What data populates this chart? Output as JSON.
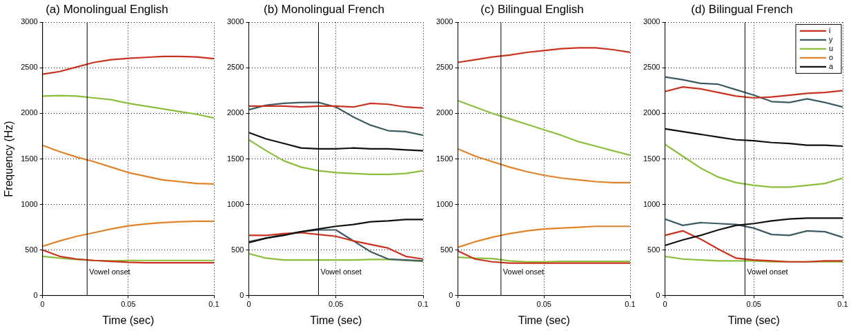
{
  "chart_data": [
    {
      "type": "line",
      "title": "(a) Monolingual English",
      "xlabel": "Time (sec)",
      "ylabel": "Frequency (Hz)",
      "x": [
        0,
        0.01,
        0.02,
        0.03,
        0.04,
        0.05,
        0.06,
        0.07,
        0.08,
        0.09,
        0.1
      ],
      "xlim": [
        0,
        0.1
      ],
      "xticks": [
        0,
        0.05,
        0.1
      ],
      "ylim": [
        0,
        3000
      ],
      "yticks": [
        0,
        500,
        1000,
        1500,
        2000,
        2500,
        3000
      ],
      "grid": true,
      "marker": "none",
      "ref_lines": [
        {
          "axis": "x",
          "value": 0.026,
          "label": "Vowel onset",
          "color": "#000000"
        }
      ],
      "series": [
        {
          "color": "#c8321e",
          "values": [
            2430,
            2460,
            2510,
            2560,
            2590,
            2605,
            2615,
            2625,
            2625,
            2620,
            2600
          ]
        },
        {
          "color": "#8cbe3c",
          "values": [
            2190,
            2195,
            2190,
            2170,
            2150,
            2110,
            2080,
            2050,
            2020,
            1990,
            1950
          ]
        },
        {
          "color": "#e08228",
          "values": [
            1650,
            1580,
            1520,
            1470,
            1410,
            1350,
            1310,
            1270,
            1250,
            1230,
            1225
          ]
        },
        {
          "color": "#e08228",
          "values": [
            540,
            600,
            650,
            690,
            730,
            765,
            785,
            800,
            810,
            815,
            815
          ]
        },
        {
          "color": "#c8321e",
          "values": [
            500,
            430,
            400,
            385,
            375,
            365,
            360,
            360,
            360,
            360,
            360
          ]
        },
        {
          "color": "#8cbe3c",
          "values": [
            430,
            410,
            395,
            385,
            380,
            385,
            385,
            385,
            385,
            385,
            385
          ]
        }
      ]
    },
    {
      "type": "line",
      "title": "(b) Monolingual French",
      "xlabel": "Time (sec)",
      "x": [
        0,
        0.01,
        0.02,
        0.03,
        0.04,
        0.05,
        0.06,
        0.07,
        0.08,
        0.09,
        0.1
      ],
      "xlim": [
        0,
        0.1
      ],
      "xticks": [
        0,
        0.05,
        0.1
      ],
      "ylim": [
        0,
        3000
      ],
      "yticks": [
        0,
        500,
        1000,
        1500,
        2000,
        2500,
        3000
      ],
      "grid": true,
      "marker": "none",
      "ref_lines": [
        {
          "axis": "x",
          "value": 0.04,
          "label": "Vowel onset",
          "color": "#000000"
        }
      ],
      "series": [
        {
          "color": "#c8321e",
          "values": [
            2080,
            2080,
            2080,
            2070,
            2080,
            2080,
            2070,
            2110,
            2100,
            2070,
            2060
          ]
        },
        {
          "color": "#3c5a64",
          "values": [
            2040,
            2090,
            2110,
            2120,
            2120,
            2070,
            1960,
            1870,
            1810,
            1800,
            1760
          ]
        },
        {
          "color": "#101010",
          "values": [
            1790,
            1720,
            1670,
            1620,
            1610,
            1610,
            1620,
            1610,
            1610,
            1600,
            1590
          ]
        },
        {
          "color": "#8cbe3c",
          "values": [
            1710,
            1590,
            1480,
            1410,
            1370,
            1350,
            1340,
            1330,
            1330,
            1340,
            1370
          ]
        },
        {
          "color": "#101010",
          "values": [
            580,
            630,
            660,
            700,
            730,
            760,
            780,
            810,
            820,
            835,
            835
          ]
        },
        {
          "color": "#c8321e",
          "values": [
            660,
            660,
            680,
            690,
            670,
            650,
            600,
            560,
            520,
            430,
            400
          ]
        },
        {
          "color": "#3c5a64",
          "values": [
            590,
            630,
            670,
            700,
            720,
            720,
            600,
            480,
            400,
            390,
            380
          ]
        },
        {
          "color": "#8cbe3c",
          "values": [
            460,
            410,
            390,
            390,
            390,
            390,
            390,
            395,
            395,
            385,
            375
          ]
        }
      ]
    },
    {
      "type": "line",
      "title": "(c) Bilingual English",
      "xlabel": "Time (sec)",
      "x": [
        0,
        0.01,
        0.02,
        0.03,
        0.04,
        0.05,
        0.06,
        0.07,
        0.08,
        0.09,
        0.1
      ],
      "xlim": [
        0,
        0.1
      ],
      "xticks": [
        0,
        0.05,
        0.1
      ],
      "ylim": [
        0,
        3000
      ],
      "yticks": [
        0,
        500,
        1000,
        1500,
        2000,
        2500,
        3000
      ],
      "grid": true,
      "marker": "none",
      "ref_lines": [
        {
          "axis": "x",
          "value": 0.025,
          "label": "Vowel onset",
          "color": "#000000"
        }
      ],
      "series": [
        {
          "color": "#c8321e",
          "values": [
            2560,
            2590,
            2620,
            2640,
            2670,
            2690,
            2710,
            2720,
            2720,
            2700,
            2670
          ]
        },
        {
          "color": "#8cbe3c",
          "values": [
            2140,
            2070,
            2000,
            1940,
            1880,
            1820,
            1760,
            1690,
            1640,
            1590,
            1540
          ]
        },
        {
          "color": "#e08228",
          "values": [
            1610,
            1530,
            1470,
            1410,
            1360,
            1320,
            1290,
            1270,
            1250,
            1240,
            1240
          ]
        },
        {
          "color": "#e08228",
          "values": [
            530,
            590,
            640,
            680,
            710,
            730,
            740,
            750,
            760,
            760,
            760
          ]
        },
        {
          "color": "#c8321e",
          "values": [
            490,
            400,
            370,
            355,
            355,
            355,
            355,
            355,
            355,
            355,
            355
          ]
        },
        {
          "color": "#8cbe3c",
          "values": [
            420,
            410,
            405,
            380,
            370,
            370,
            375,
            375,
            375,
            375,
            375
          ]
        }
      ]
    },
    {
      "type": "line",
      "title": "(d) Bilingual French",
      "xlabel": "Time (sec)",
      "x": [
        0,
        0.01,
        0.02,
        0.03,
        0.04,
        0.05,
        0.06,
        0.07,
        0.08,
        0.09,
        0.1
      ],
      "xlim": [
        0,
        0.1
      ],
      "xticks": [
        0,
        0.05,
        0.1
      ],
      "ylim": [
        0,
        3000
      ],
      "yticks": [
        0,
        500,
        1000,
        1500,
        2000,
        2500,
        3000
      ],
      "grid": true,
      "marker": "none",
      "legend": "top right",
      "ref_lines": [
        {
          "axis": "x",
          "value": 0.045,
          "label": "Vowel onset",
          "color": "#000000"
        }
      ],
      "series": [
        {
          "name": "i",
          "color": "#c8321e",
          "values": [
            2240,
            2290,
            2270,
            2230,
            2190,
            2170,
            2180,
            2200,
            2220,
            2230,
            2250
          ]
        },
        {
          "name": "y",
          "color": "#3c5a64",
          "values": [
            2400,
            2370,
            2330,
            2320,
            2260,
            2200,
            2130,
            2120,
            2160,
            2120,
            2070
          ]
        },
        {
          "name": "u",
          "color": "#8cbe3c",
          "values": [
            1660,
            1530,
            1400,
            1300,
            1240,
            1210,
            1190,
            1190,
            1210,
            1230,
            1290
          ]
        },
        {
          "name": "o",
          "color": "#e08228",
          "values": [
            null,
            null,
            null,
            null,
            null,
            null,
            null,
            null,
            null,
            null,
            null
          ]
        },
        {
          "name": "a",
          "color": "#101010",
          "values": [
            1830,
            1800,
            1770,
            1740,
            1710,
            1700,
            1680,
            1670,
            1650,
            1650,
            1640
          ]
        },
        {
          "color": "#101010",
          "values": [
            550,
            610,
            660,
            720,
            770,
            790,
            820,
            840,
            850,
            850,
            850
          ]
        },
        {
          "color": "#3c5a64",
          "values": [
            840,
            770,
            800,
            790,
            780,
            740,
            670,
            660,
            710,
            700,
            640
          ]
        },
        {
          "color": "#c8321e",
          "values": [
            660,
            710,
            620,
            510,
            410,
            390,
            380,
            370,
            370,
            380,
            380
          ]
        },
        {
          "color": "#8cbe3c",
          "values": [
            430,
            400,
            390,
            380,
            380,
            380,
            370,
            370,
            370,
            370,
            370
          ]
        }
      ]
    }
  ]
}
